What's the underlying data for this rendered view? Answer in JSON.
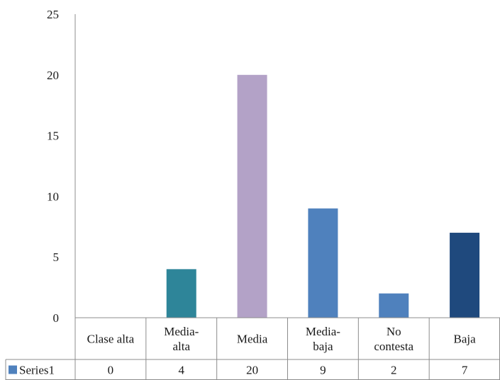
{
  "chart_data": {
    "type": "bar",
    "categories": [
      [
        "Clase alta"
      ],
      [
        "Media-",
        "alta"
      ],
      [
        "Media"
      ],
      [
        "Media-",
        "baja"
      ],
      [
        "No",
        "contesta"
      ],
      [
        "Baja"
      ]
    ],
    "series": [
      {
        "name": "Series1",
        "values": [
          0,
          4,
          20,
          9,
          2,
          7
        ],
        "colors": [
          "#2E8599",
          "#2E8599",
          "#B3A2C7",
          "#4F81BD",
          "#4F81BD",
          "#1F497D"
        ]
      }
    ],
    "legend_color": "#4F81BD",
    "ylim": [
      0,
      25
    ],
    "yticks": [
      0,
      5,
      10,
      15,
      20,
      25
    ],
    "data_table": true,
    "grid": false
  }
}
